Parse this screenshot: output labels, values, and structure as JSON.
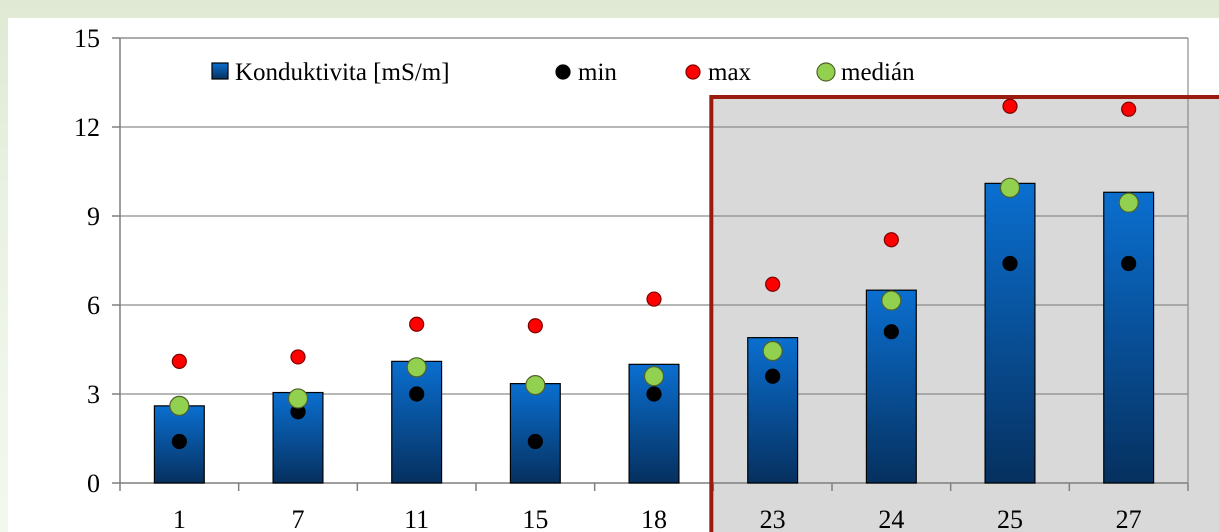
{
  "chart_data": {
    "type": "bar",
    "categories": [
      "1",
      "7",
      "11",
      "15",
      "18",
      "23",
      "24",
      "25",
      "27"
    ],
    "series": [
      {
        "name": "Konduktivita [mS/m]",
        "kind": "bar",
        "values": [
          2.6,
          3.05,
          4.1,
          3.35,
          4.0,
          4.9,
          6.5,
          10.1,
          9.8
        ],
        "color": "#0d5ca8"
      },
      {
        "name": "min",
        "kind": "marker",
        "values": [
          1.4,
          2.4,
          3.0,
          1.4,
          3.0,
          3.6,
          5.1,
          7.4,
          7.4
        ],
        "color": "#000000"
      },
      {
        "name": "max",
        "kind": "marker",
        "values": [
          4.1,
          4.25,
          5.35,
          5.3,
          6.2,
          6.7,
          8.2,
          12.7,
          12.6
        ],
        "color": "#ff0000"
      },
      {
        "name": "medián",
        "kind": "marker",
        "values": [
          2.6,
          2.85,
          3.9,
          3.3,
          3.6,
          4.45,
          6.15,
          9.95,
          9.45
        ],
        "color": "#92d050"
      }
    ],
    "yticks": [
      "0",
      "3",
      "6",
      "9",
      "12",
      "15"
    ],
    "ylim": [
      0,
      15
    ],
    "grid": true,
    "legend_position": "top",
    "highlight": {
      "from_category": "23",
      "to_category": "27",
      "fill": "#d9d9d9",
      "border": "#9b1b0f"
    },
    "title": "",
    "xlabel": "",
    "ylabel": ""
  }
}
